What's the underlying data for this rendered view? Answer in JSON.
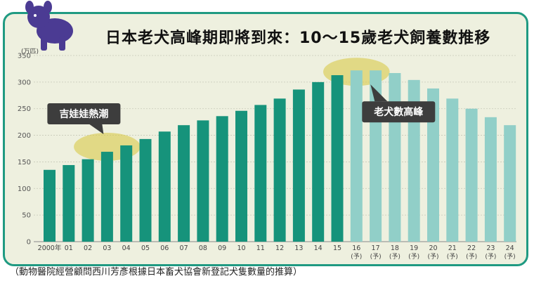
{
  "title": "日本老犬高峰期即將到來：10～15歲老犬飼養數推移",
  "footnote": "（動物醫院經營顧問西川芳彥根據日本畜犬協會新登記犬隻數量的推算）",
  "colors": {
    "actual": "#16937b",
    "projected": "#91cfc8",
    "highlight": "#d8c94a",
    "callout": "#3d3d3d",
    "frame": "#1f9a82"
  },
  "chart_data": {
    "type": "bar",
    "title": "日本老犬高峰期即將到來：10～15歲老犬飼養數推移",
    "ylabel": "(万匹)",
    "xlabel": "",
    "ylim": [
      0,
      350
    ],
    "yticks": [
      0,
      50,
      100,
      150,
      200,
      250,
      300,
      350
    ],
    "grid": true,
    "categories": [
      "2000年",
      "01",
      "02",
      "03",
      "04",
      "05",
      "06",
      "07",
      "08",
      "09",
      "10",
      "11",
      "12",
      "13",
      "14",
      "15",
      "16",
      "17",
      "18",
      "19",
      "20",
      "21",
      "22",
      "23",
      "24"
    ],
    "projected_marker": "(予)",
    "series": [
      {
        "name": "actual",
        "values": [
          135,
          144,
          155,
          169,
          181,
          193,
          207,
          219,
          228,
          236,
          246,
          257,
          269,
          286,
          300,
          313,
          null,
          null,
          null,
          null,
          null,
          null,
          null,
          null,
          null
        ]
      },
      {
        "name": "projected",
        "values": [
          null,
          null,
          null,
          null,
          null,
          null,
          null,
          null,
          null,
          null,
          null,
          null,
          null,
          null,
          null,
          null,
          322,
          322,
          317,
          304,
          288,
          269,
          250,
          234,
          219
        ]
      }
    ],
    "annotations": [
      {
        "text": "吉娃娃熱潮",
        "categories": [
          "02",
          "03",
          "04"
        ]
      },
      {
        "text": "老犬數高峰",
        "categories": [
          "15",
          "16",
          "17"
        ]
      }
    ]
  }
}
